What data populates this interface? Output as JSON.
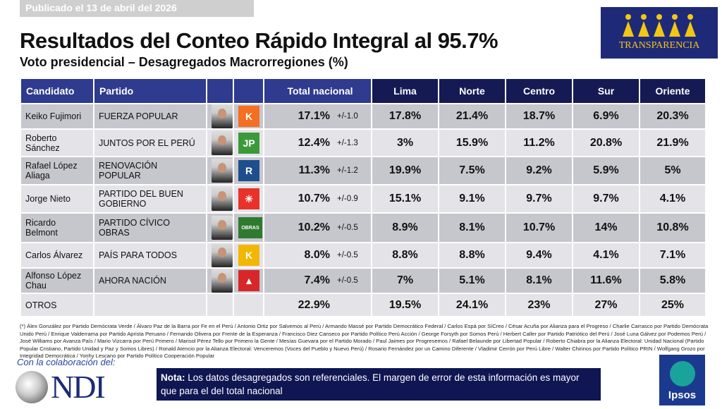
{
  "published": "Publicado el 13 de abril del 2026",
  "title": "Resultados del Conteo Rápido Integral al 95.7%",
  "subtitle": "Voto presidencial – Desagregados Macrorregiones (%)",
  "logo_transparencia": "TRANSPARENCIA",
  "headers": {
    "candidato": "Candidato",
    "partido": "Partido",
    "total": "Total nacional",
    "lima": "Lima",
    "norte": "Norte",
    "centro": "Centro",
    "sur": "Sur",
    "oriente": "Oriente"
  },
  "rows": [
    {
      "candidato": "Keiko Fujimori",
      "partido": "FUERZA POPULAR",
      "total": "17.1%",
      "margin": "+/-1.0",
      "lima": "17.8%",
      "norte": "21.4%",
      "centro": "18.7%",
      "sur": "6.9%",
      "oriente": "20.3%",
      "logo": "K",
      "logo_color": "#f36f21"
    },
    {
      "candidato": "Roberto Sánchez",
      "partido": "JUNTOS POR EL PERÚ",
      "total": "12.4%",
      "margin": "+/-1.3",
      "lima": "3%",
      "norte": "15.9%",
      "centro": "11.2%",
      "sur": "20.8%",
      "oriente": "21.9%",
      "logo": "JP",
      "logo_color": "#3a9a3a"
    },
    {
      "candidato": "Rafael López Aliaga",
      "partido": "RENOVACIÓN POPULAR",
      "total": "11.3%",
      "margin": "+/-1.2",
      "lima": "19.9%",
      "norte": "7.5%",
      "centro": "9.2%",
      "sur": "5.9%",
      "oriente": "5%",
      "logo": "R",
      "logo_color": "#1f4e8c"
    },
    {
      "candidato": "Jorge Nieto",
      "partido": "PARTIDO DEL BUEN GOBIERNO",
      "total": "10.7%",
      "margin": "+/-0.9",
      "lima": "15.1%",
      "norte": "9.1%",
      "centro": "9.7%",
      "sur": "9.7%",
      "oriente": "4.1%",
      "logo": "☀",
      "logo_color": "#e8332a"
    },
    {
      "candidato": "Ricardo Belmont",
      "partido": "PARTIDO CÍVICO OBRAS",
      "total": "10.2%",
      "margin": "+/-0.5",
      "lima": "8.9%",
      "norte": "8.1%",
      "centro": "10.7%",
      "sur": "14%",
      "oriente": "10.8%",
      "logo": "OBRAS",
      "logo_color": "#2f7a2f"
    },
    {
      "candidato": "Carlos Álvarez",
      "partido": "PAÍS PARA TODOS",
      "total": "8.0%",
      "margin": "+/-0.5",
      "lima": "8.8%",
      "norte": "8.8%",
      "centro": "9.4%",
      "sur": "4.1%",
      "oriente": "7.1%",
      "logo": "K",
      "logo_color": "#f2b705"
    },
    {
      "candidato": "Alfonso López Chau",
      "partido": "AHORA NACIÓN",
      "total": "7.4%",
      "margin": "+/-0.5",
      "lima": "7%",
      "norte": "5.1%",
      "centro": "8.1%",
      "sur": "11.6%",
      "oriente": "5.8%",
      "logo": "▲",
      "logo_color": "#d62828"
    }
  ],
  "otros": {
    "candidato": "OTROS",
    "total": "22.9%",
    "lima": "19.5%",
    "norte": "24.1%",
    "centro": "23%",
    "sur": "27%",
    "oriente": "25%"
  },
  "footnote": "(*) Álex González por Partido Demócrata Verde / Álvaro Paz de la Barra por Fe en el Perú / Antonio Ortiz por Salvemos al Perú / Armando Massé por Partido Democrático Federal / Carlos Espá por SíCreo / César Acuña por Alianza para el Progreso / Charlie Carrasco por Partido Demócrata Unido Perú / Enrique Valderrama por Partido Aprista Peruano / Fernando Olivera por Frente de la Esperanza / Francisco Diez Canseco por Partido Político Perú Acción / George Forsyth por Somos Perú / Herbert Caller por Partido Patriótico del Perú / José Luna Gálvez por Podemos Perú / José Williams por Avanza País / Mario Vizcarra por Perú Primero / Marisol Pérez Tello por Primero la Gente / Mesías Guevara por el Partido Morado / Paul Jaimes por Progresemos / Rafael Belaunde por Libertad Popular / Roberto Chiabra por la Alianza Electoral: Unidad Nacional (Partido Popular Cristiano, Partido Unidad y Paz y Somos Libres) / Ronald Atencio por la Alianza Electoral: Venceremos (Voces del Pueblo y Nuevo Perú) / Rosario Fernández por un Camino Diferente / Vladimir Cerrón por Perú Libre / Walter Chirinos por Partido Político PRIN / Wolfgang Grozo por Integridad Democrática / Yonhy Lescano por Partido Político Cooperación Popular",
  "colab": "Con la colaboración del:",
  "logo_ndi": "NDI",
  "nota_label": "Nota:",
  "nota_text": " Los datos desagregados son referenciales. El margen de error de esta información es mayor que para el del total nacional",
  "logo_ipsos": "Ipsos"
}
